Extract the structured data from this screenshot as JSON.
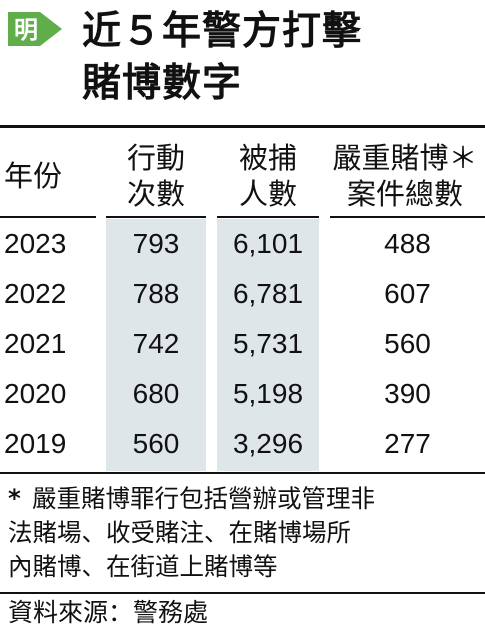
{
  "logo": {
    "glyph": "明",
    "color": "#5fae4a"
  },
  "title": [
    "近５年警方打擊",
    "賭博數字"
  ],
  "table": {
    "headers": {
      "year": "年份",
      "actions": [
        "行動",
        "次數"
      ],
      "arrested": [
        "被捕",
        "人數"
      ],
      "serious": [
        "嚴重賭博＊",
        "案件總數"
      ]
    },
    "rows": [
      {
        "year": "2023",
        "actions": "793",
        "arrested": "6,101",
        "serious": "488"
      },
      {
        "year": "2022",
        "actions": "788",
        "arrested": "6,781",
        "serious": "607"
      },
      {
        "year": "2021",
        "actions": "742",
        "arrested": "5,731",
        "serious": "560"
      },
      {
        "year": "2020",
        "actions": "680",
        "arrested": "5,198",
        "serious": "390"
      },
      {
        "year": "2019",
        "actions": "560",
        "arrested": "3,296",
        "serious": "277"
      }
    ],
    "shade_color": "#dfe6ea"
  },
  "note": {
    "star": "*",
    "lines": [
      "嚴重賭博罪行包括營辦或管理非",
      "法賭場、收受賭注、在賭博場所",
      "內賭博、在街道上賭博等"
    ]
  },
  "source": "資料來源：警務處"
}
